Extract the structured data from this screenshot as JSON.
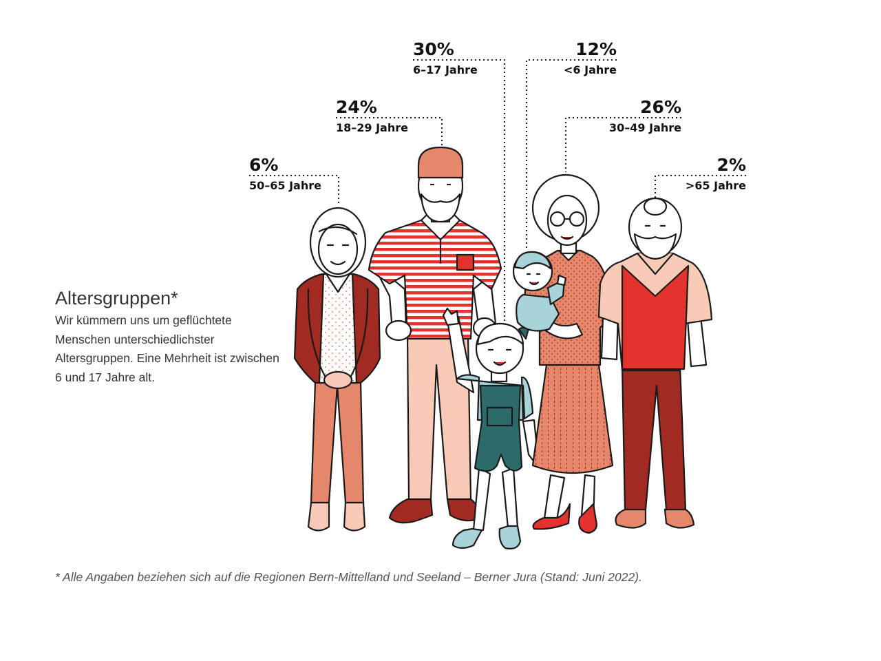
{
  "chart_data": {
    "type": "pictogram",
    "title": "Altersgruppen*",
    "description": "Wir kümmern uns um geflüchtete Menschen unterschiedlichster Altersgruppen. Eine Mehrheit ist zwischen 6 und 17 Jahre alt.",
    "footnote": "* Alle Angaben beziehen sich auf die Regionen Bern-Mittelland und Seeland – Berner Jura (Stand: Juni 2022).",
    "unit": "%",
    "categories": [
      "50–65 Jahre",
      "18–29 Jahre",
      "6–17 Jahre",
      "<6 Jahre",
      "30–49 Jahre",
      ">65 Jahre"
    ],
    "values": [
      6,
      24,
      30,
      12,
      26,
      2
    ],
    "labels": [
      "6%",
      "24%",
      "30%",
      "12%",
      "26%",
      "2%"
    ]
  },
  "colors": {
    "dark_red": "#a12a23",
    "red": "#e3332c",
    "salmon": "#e5876b",
    "peach": "#f9cbb6",
    "teal": "#2d6b6a",
    "light_blue": "#a8d3d8",
    "outline": "#1a1a1a"
  }
}
